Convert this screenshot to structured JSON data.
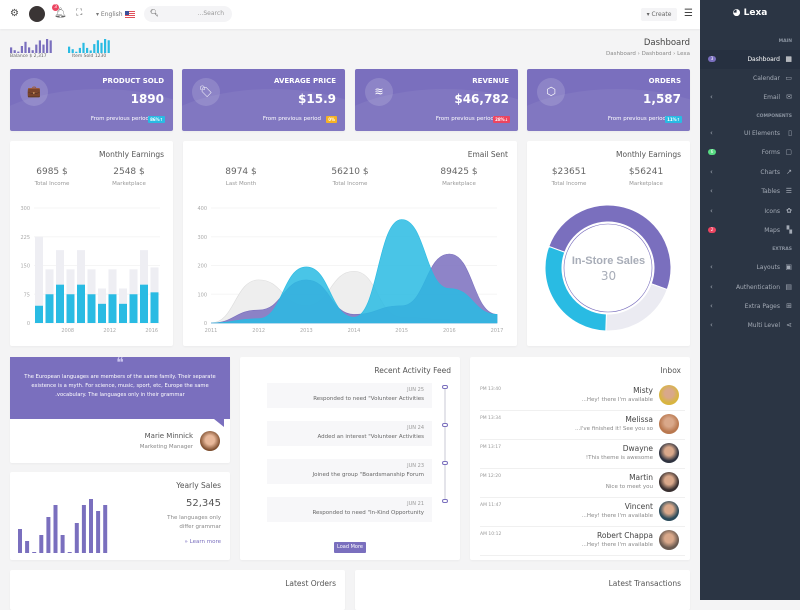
{
  "topbar": {
    "notifications": "3",
    "language": "English",
    "search_placeholder": "...Search",
    "create": "Create"
  },
  "sparklines": {
    "balance_label": "Balance $ 2,317",
    "balance_values": [
      4,
      2,
      1,
      5,
      8,
      4,
      2,
      6,
      9,
      6,
      10,
      9
    ],
    "sold_label": "Item Sold 1230",
    "sold_values": [
      5,
      3,
      1,
      4,
      8,
      4,
      2,
      7,
      10,
      8,
      11,
      10
    ],
    "colors": [
      "#7a6fbe",
      "#29bbe3"
    ]
  },
  "header": {
    "title": "Dashboard",
    "breadcrumb": [
      "Dashboard",
      "Dashboard",
      "Lexa"
    ]
  },
  "stats": [
    {
      "title": "PRODUCT SOLD",
      "value": "1890",
      "footer": "From previous period",
      "badge": "86%↑",
      "badge_color": "#29bbe3",
      "icon": "briefcase-icon",
      "glyph": "💼"
    },
    {
      "title": "AVERAGE PRICE",
      "value": "$15.9",
      "footer": "From previous period",
      "badge": "0%",
      "badge_color": "#f5b225",
      "icon": "tag-icon",
      "glyph": "🏷"
    },
    {
      "title": "REVENUE",
      "value": "$46,782",
      "footer": "From previous period",
      "badge": "28%↓",
      "badge_color": "#ec4561",
      "icon": "layers-icon",
      "glyph": "≋"
    },
    {
      "title": "ORDERS",
      "value": "1,587",
      "footer": "From previous period",
      "badge": "11%↑",
      "badge_color": "#29bbe3",
      "icon": "cube-icon",
      "glyph": "⬡"
    }
  ],
  "monthly1": {
    "title": "Monthly Earnings",
    "a_value": "6985 $",
    "a_label": "Total Income",
    "b_value": "2548 $",
    "b_label": "Marketplace"
  },
  "email": {
    "title": "Email Sent",
    "a_value": "8974 $",
    "a_label": "Last Month",
    "b_value": "56210 $",
    "b_label": "Total Income",
    "c_value": "89425 $",
    "c_label": "Marketplace"
  },
  "monthly2": {
    "title": "Monthly Earnings",
    "a_value": "$23651",
    "a_label": "Total Income",
    "b_value": "$56241",
    "b_label": "Marketplace",
    "center_title": "In-Store Sales",
    "center_value": "30"
  },
  "chart_data": [
    {
      "type": "bar",
      "yticks": [
        0,
        75,
        150,
        225,
        300
      ],
      "ylim": [
        0,
        300
      ],
      "x": [
        2005,
        2006,
        2007,
        2008,
        2009,
        2010,
        2011,
        2012,
        2013,
        2014,
        2015,
        2016
      ],
      "xticks": [
        "2008",
        "2012",
        "2016"
      ],
      "series": [
        {
          "values": [
            225,
            140,
            190,
            140,
            190,
            140,
            90,
            140,
            90,
            140,
            190,
            145
          ],
          "color": "#eeeef3"
        },
        {
          "values": [
            45,
            75,
            100,
            75,
            100,
            75,
            50,
            75,
            50,
            75,
            100,
            80
          ],
          "color": "#29bbe3"
        }
      ]
    },
    {
      "type": "area",
      "ylim": [
        0,
        400
      ],
      "yticks": [
        0,
        100,
        200,
        300,
        400
      ],
      "x": [
        "2011",
        "2012",
        "2013",
        "2014",
        "2015",
        "2016",
        "2017"
      ],
      "series": [
        {
          "values": [
            0,
            150,
            60,
            180,
            20,
            10,
            0
          ],
          "color": "#eeeeee"
        },
        {
          "values": [
            0,
            45,
            150,
            30,
            60,
            240,
            30
          ],
          "color": "#7a6fbe"
        },
        {
          "values": [
            0,
            15,
            195,
            20,
            360,
            120,
            30
          ],
          "color": "#29bbe3"
        }
      ]
    },
    {
      "type": "pie",
      "values": [
        50,
        20,
        30
      ],
      "colors": [
        "#7a6fbe",
        "#ebebf2",
        "#29bbe3"
      ]
    },
    {
      "type": "bar",
      "values": [
        4,
        2,
        0,
        3,
        6,
        8,
        3,
        0,
        5,
        8,
        9,
        7,
        8
      ],
      "color": "#7a6fbe"
    }
  ],
  "testimonial": {
    "text": "The European languages are members of the same family. Their separate existence is a myth. For science, music, sport, etc, Europe the same .vocabulary. The languages only in their grammar",
    "name": "Marie Minnick",
    "role": "Marketing Manager"
  },
  "yearly": {
    "title": "Yearly Sales",
    "value": "52,345",
    "desc1": "The languages only",
    "desc2": "differ grammar",
    "link": "Learn more"
  },
  "activity": {
    "title": "Recent Activity Feed",
    "items": [
      {
        "date": "JUN 25",
        "text": "Responded to need \"Volunteer Activities"
      },
      {
        "date": "JUN 24",
        "text": "Added an interest \"Volunteer Activities"
      },
      {
        "date": "JUN 23",
        "text": "Joined the group \"Boardsmanship Forum"
      },
      {
        "date": "JUN 21",
        "text": "Responded to need \"In-Kind Opportunity"
      }
    ],
    "load_more": "Load More"
  },
  "inbox": {
    "title": "Inbox",
    "items": [
      {
        "time": "PM 13:40",
        "name": "Misty",
        "text": "...Hey! there I'm available",
        "color": "#d8b540"
      },
      {
        "time": "PM 13:34",
        "name": "Melissa",
        "text": "...I've finished it! See you so",
        "color": "#b9784f"
      },
      {
        "time": "PM 13:17",
        "name": "Dwayne",
        "text": "!This theme is awesome",
        "color": "#2f3340"
      },
      {
        "time": "PM 12:20",
        "name": "Martin",
        "text": "Nice to meet you",
        "color": "#3a3030"
      },
      {
        "time": "AM 11:47",
        "name": "Vincent",
        "text": "...Hey! there I'm available",
        "color": "#2a4a5a"
      },
      {
        "time": "AM 10:12",
        "name": "Robert Chappa",
        "text": "...Hey! there I'm available",
        "color": "#6a5a50"
      }
    ]
  },
  "bottom": {
    "orders": "Latest Orders",
    "transactions": "Latest Transactions"
  },
  "sidebar": {
    "brand": "Lexa",
    "main": "MAIN",
    "components": "COMPONENTS",
    "extras": "EXTRAS",
    "items": [
      {
        "label": "Dashboard",
        "icon": "dashboard-icon",
        "glyph": "▦",
        "badge": "3",
        "badge_color": "#7a6fbe",
        "active": true
      },
      {
        "label": "Calendar",
        "icon": "calendar-icon",
        "glyph": "▭"
      },
      {
        "label": "Email",
        "icon": "email-icon",
        "glyph": "✉",
        "chev": true
      },
      {
        "label": "UI Elements",
        "icon": "trash-icon",
        "glyph": "▯",
        "chev": true
      },
      {
        "label": "Forms",
        "icon": "clipboard-icon",
        "glyph": "▢",
        "badge": "6",
        "badge_color": "#58db83"
      },
      {
        "label": "Charts",
        "icon": "chart-icon",
        "glyph": "↗",
        "chev": true
      },
      {
        "label": "Tables",
        "icon": "list-icon",
        "glyph": "☰",
        "chev": true
      },
      {
        "label": "Icons",
        "icon": "settings-icon",
        "glyph": "✿",
        "chev": true
      },
      {
        "label": "Maps",
        "icon": "map-icon",
        "glyph": "▚",
        "badge": "2",
        "badge_color": "#ec4561"
      },
      {
        "label": "Layouts",
        "icon": "layout-icon",
        "glyph": "▣",
        "chev": true
      },
      {
        "label": "Authentication",
        "icon": "user-card-icon",
        "glyph": "▤",
        "chev": true
      },
      {
        "label": "Extra Pages",
        "icon": "plus-box-icon",
        "glyph": "⊞",
        "chev": true
      },
      {
        "label": "Multi Level",
        "icon": "share-icon",
        "glyph": "⋖",
        "chev": true
      }
    ]
  }
}
